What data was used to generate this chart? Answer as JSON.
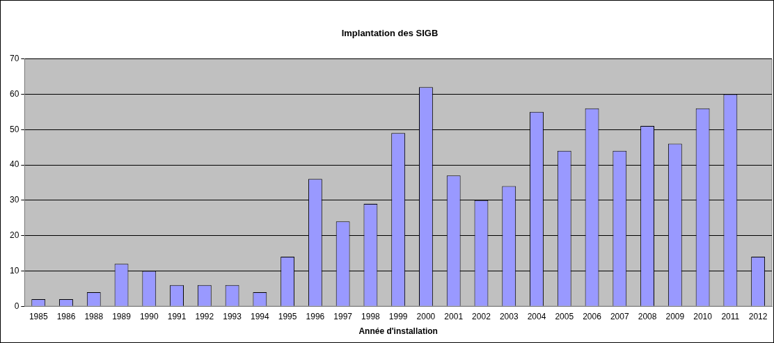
{
  "chart_data": {
    "type": "bar",
    "title": "Implantation des SIGB",
    "xlabel": "Année d'installation",
    "categories": [
      "1985",
      "1986",
      "1988",
      "1989",
      "1990",
      "1991",
      "1992",
      "1993",
      "1994",
      "1995",
      "1996",
      "1997",
      "1998",
      "1999",
      "2000",
      "2001",
      "2002",
      "2003",
      "2004",
      "2005",
      "2006",
      "2007",
      "2008",
      "2009",
      "2010",
      "2011",
      "2012"
    ],
    "values": [
      2,
      2,
      4,
      12,
      10,
      6,
      6,
      6,
      4,
      14,
      36,
      24,
      29,
      49,
      62,
      37,
      30,
      34,
      55,
      44,
      56,
      44,
      51,
      46,
      56,
      60,
      14
    ],
    "color": "#9999ff",
    "ylim": [
      0,
      70
    ],
    "yticks": [
      0,
      10,
      20,
      30,
      40,
      50,
      60,
      70
    ],
    "grid": "y",
    "legend": false
  }
}
